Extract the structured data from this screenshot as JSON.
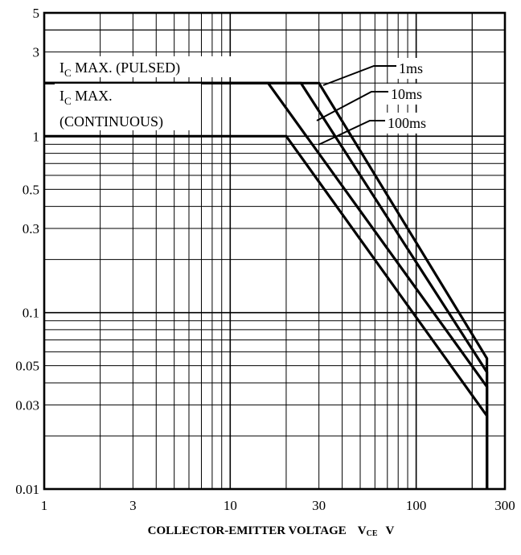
{
  "chart_data": {
    "type": "line",
    "title": "",
    "xlabel": "COLLECTOR-EMITTER VOLTAGE",
    "xlabel_symbol": "V",
    "xlabel_symbol_sub": "CE",
    "xlabel_unit": "V",
    "ylabel": "",
    "x_scale": "log",
    "y_scale": "log",
    "xlim": [
      1,
      300
    ],
    "ylim": [
      0.01,
      5
    ],
    "grid": true,
    "x_ticks": [
      {
        "value": 1,
        "label": "1"
      },
      {
        "value": 3,
        "label": "3"
      },
      {
        "value": 10,
        "label": "10"
      },
      {
        "value": 30,
        "label": "30"
      },
      {
        "value": 100,
        "label": "100"
      },
      {
        "value": 300,
        "label": "300"
      }
    ],
    "y_ticks": [
      {
        "value": 5,
        "label": "5"
      },
      {
        "value": 3,
        "label": "3"
      },
      {
        "value": 1,
        "label": "1"
      },
      {
        "value": 0.5,
        "label": "0.5"
      },
      {
        "value": 0.3,
        "label": "0.3"
      },
      {
        "value": 0.1,
        "label": "0.1"
      },
      {
        "value": 0.05,
        "label": "0.05"
      },
      {
        "value": 0.03,
        "label": "0.03"
      },
      {
        "value": 0.01,
        "label": "0.01"
      }
    ],
    "series": [
      {
        "name": "1ms",
        "points": [
          [
            1,
            2.0
          ],
          [
            30,
            2.0
          ],
          [
            240,
            0.055
          ],
          [
            240,
            0.01
          ]
        ]
      },
      {
        "name": "10ms",
        "points": [
          [
            1,
            2.0
          ],
          [
            24,
            2.0
          ],
          [
            240,
            0.046
          ],
          [
            240,
            0.01
          ]
        ]
      },
      {
        "name": "100ms",
        "points": [
          [
            1,
            2.0
          ],
          [
            16,
            2.0
          ],
          [
            240,
            0.038
          ],
          [
            240,
            0.01
          ]
        ]
      },
      {
        "name": "",
        "points": [
          [
            1,
            1.0
          ],
          [
            20,
            1.0
          ],
          [
            240,
            0.026
          ],
          [
            240,
            0.01
          ]
        ]
      }
    ],
    "annotations": [
      {
        "key": "pulsed",
        "text_main": "I",
        "text_sub": "C",
        "text_rest": " MAX. (PULSED)"
      },
      {
        "key": "continuous",
        "text_main": "I",
        "text_sub": "C",
        "text_rest": " MAX.",
        "text_line2": "(CONTINUOUS)"
      }
    ],
    "series_labels": [
      {
        "name": "1ms",
        "label": "1ms"
      },
      {
        "name": "10ms",
        "label": "10ms"
      },
      {
        "name": "100ms",
        "label": "100ms"
      }
    ]
  }
}
